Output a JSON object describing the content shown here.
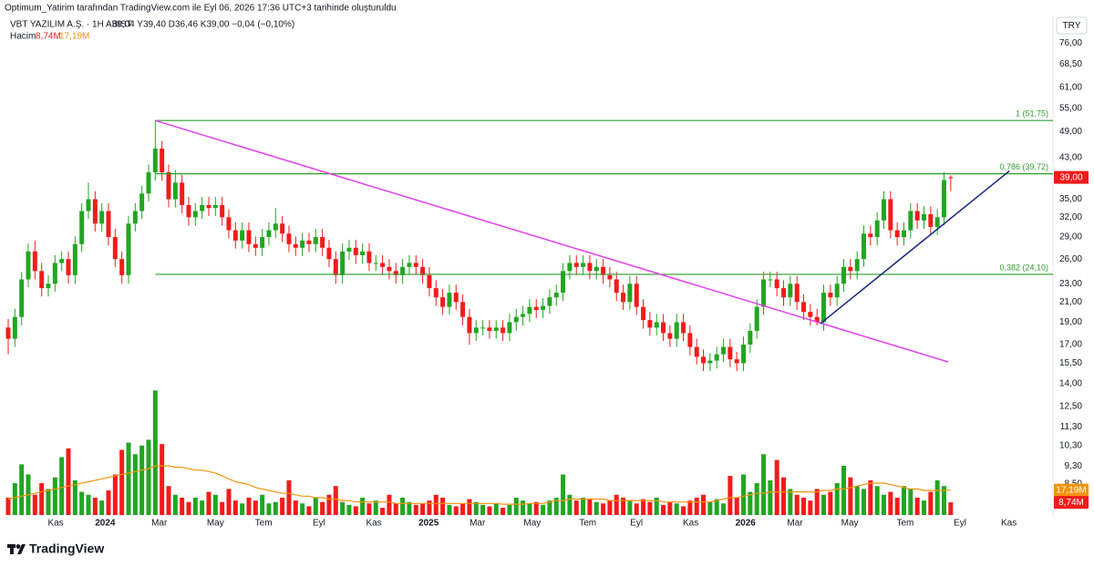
{
  "header": {
    "attribution": "Optimum_Yatirim tarafından TradingView.com ile Eyl 06, 2026 17:36 UTC+3 tarihinde oluşturuldu",
    "symbol": "VBT YAZILIM A.Ş. · 1H · BIST",
    "ohlc": "A39,04 Y39,40 D36,46 K39,00 −0,04 (−0,10%)",
    "volume_title": "Hacim",
    "volume_value": "8,74M",
    "volume_ma_value": "17,19M"
  },
  "currency": "TRY",
  "logo": "TradingView",
  "chart_data": {
    "type": "candlestick",
    "log_scale": true,
    "grid": false,
    "up_color": "#22a522",
    "down_color": "#f21b1b",
    "ma_color": "#f5930b",
    "level_color": "#2e9e2e",
    "xlim": [
      -1.23,
      156.3
    ],
    "ylim": [
      7.29,
      86
    ],
    "volume_ylim": [
      0,
      90
    ],
    "xticks": [
      {
        "value": 7.1,
        "label": "Kas"
      },
      {
        "value": 14.5,
        "label": "2024"
      },
      {
        "value": 22.6,
        "label": "Mar"
      },
      {
        "value": 31,
        "label": "May"
      },
      {
        "value": 38.2,
        "label": "Tem"
      },
      {
        "value": 46.5,
        "label": "Eyl"
      },
      {
        "value": 54.7,
        "label": "Kas"
      },
      {
        "value": 62.9,
        "label": "2025"
      },
      {
        "value": 70.2,
        "label": "Mar"
      },
      {
        "value": 78.4,
        "label": "May"
      },
      {
        "value": 86.7,
        "label": "Tem"
      },
      {
        "value": 94,
        "label": "Eyl"
      },
      {
        "value": 102.1,
        "label": "Kas"
      },
      {
        "value": 110.3,
        "label": "2026"
      },
      {
        "value": 117.7,
        "label": "Mar"
      },
      {
        "value": 125.9,
        "label": "May"
      },
      {
        "value": 134.2,
        "label": "Tem"
      },
      {
        "value": 142.4,
        "label": "Eyl"
      },
      {
        "value": 149.7,
        "label": "Kas"
      }
    ],
    "yticks": [
      {
        "value": 76,
        "label": "76,00"
      },
      {
        "value": 68.5,
        "label": "68,50"
      },
      {
        "value": 61,
        "label": "61,00"
      },
      {
        "value": 55,
        "label": "55,00"
      },
      {
        "value": 49,
        "label": "49,00"
      },
      {
        "value": 43,
        "label": "43,00"
      },
      {
        "value": 35,
        "label": "35,00"
      },
      {
        "value": 32,
        "label": "32,00"
      },
      {
        "value": 29,
        "label": "29,00"
      },
      {
        "value": 26,
        "label": "26,00"
      },
      {
        "value": 23,
        "label": "23,00"
      },
      {
        "value": 21,
        "label": "21,00"
      },
      {
        "value": 19,
        "label": "19,00"
      },
      {
        "value": 17,
        "label": "17,00"
      },
      {
        "value": 15.5,
        "label": "15,50"
      },
      {
        "value": 14,
        "label": "14,00"
      },
      {
        "value": 12.5,
        "label": "12,50"
      },
      {
        "value": 11.3,
        "label": "11,30"
      },
      {
        "value": 10.3,
        "label": "10,30"
      },
      {
        "value": 9.3,
        "label": "9,30"
      },
      {
        "value": 8.5,
        "label": "8,50"
      }
    ],
    "open": [
      18.5,
      17.5,
      19.5,
      23.5,
      27,
      24.5,
      22.5,
      23,
      25.5,
      26,
      24,
      28,
      33,
      35,
      31,
      33,
      29,
      26,
      24,
      31,
      33,
      36,
      40,
      45,
      40,
      35,
      38,
      34,
      32,
      33,
      34,
      33.5,
      34,
      32,
      30,
      28.5,
      30,
      28,
      27.5,
      29,
      30,
      31,
      29.5,
      28,
      27.5,
      28.5,
      28,
      29,
      27.5,
      26,
      24,
      27,
      27.5,
      26.5,
      27,
      25.5,
      25.5,
      25,
      24.5,
      24,
      25,
      25.5,
      25,
      24,
      22.5,
      21.5,
      20.5,
      22,
      21,
      19.5,
      18,
      18.5,
      18.5,
      18.2,
      18.5,
      18,
      19,
      19.5,
      19.8,
      20.5,
      20.2,
      20.6,
      21.5,
      22,
      24.5,
      25.5,
      25,
      25.5,
      24.5,
      25,
      24,
      23.5,
      22,
      21,
      23,
      20.5,
      19.2,
      18.5,
      19,
      18,
      17.5,
      19,
      18,
      16.8,
      16,
      15.5,
      15.7,
      16.2,
      16.8,
      15.8,
      15.5,
      17,
      18.2,
      20.5,
      23.5,
      23.5,
      22.5,
      21.5,
      23,
      21,
      20,
      19.5,
      19,
      22,
      21.5,
      23,
      25,
      24.5,
      26,
      29.5,
      29,
      31.5,
      35,
      30,
      29,
      30,
      33,
      31.5,
      32.5,
      30.5,
      32,
      39.04
    ],
    "high": [
      19.3,
      20.3,
      24.4,
      28.1,
      28.5,
      25.5,
      24,
      26.5,
      27,
      27,
      29.1,
      34.3,
      38,
      36.4,
      34.3,
      34.3,
      30.2,
      27,
      32.2,
      34.3,
      37.4,
      41.6,
      51.75,
      46.8,
      41.6,
      40.5,
      39.5,
      35.4,
      34.3,
      35.4,
      35.4,
      35.4,
      35.4,
      33.3,
      31.2,
      31.2,
      31.2,
      29.1,
      30.2,
      31.2,
      33.5,
      32.2,
      30.7,
      29.1,
      29.6,
      29.6,
      30.2,
      30.2,
      28.6,
      27,
      28.1,
      28.6,
      28.6,
      28.1,
      28.1,
      26.5,
      26.5,
      26,
      25.5,
      26,
      26.5,
      26.5,
      26,
      25,
      23.4,
      22.4,
      22.9,
      22.9,
      21.8,
      20.3,
      19.2,
      19.2,
      19.2,
      19.2,
      19.2,
      19.8,
      20.3,
      20.6,
      21.3,
      21.3,
      21.4,
      22.4,
      22.9,
      25.5,
      26.5,
      26.5,
      26.5,
      26.5,
      26,
      26,
      25,
      24.4,
      22.9,
      23.9,
      23.9,
      21.3,
      20,
      19.8,
      19.8,
      18.7,
      19.8,
      19.8,
      18.7,
      17.5,
      16.6,
      16.3,
      16.8,
      17.5,
      17.5,
      16.4,
      17.7,
      18.9,
      21.3,
      24.4,
      24.4,
      24.4,
      23.4,
      23.9,
      23.9,
      21.8,
      20.8,
      20.3,
      22.9,
      22.9,
      23.9,
      26,
      26,
      27,
      30.7,
      30.7,
      32.8,
      36.4,
      36.4,
      31.2,
      31.2,
      34.3,
      34.3,
      33.8,
      33.8,
      33.3,
      40,
      39.4
    ],
    "low": [
      16.2,
      16.8,
      18.7,
      22.6,
      23.5,
      21.6,
      21.6,
      22.1,
      24.5,
      23,
      23,
      26.9,
      31.7,
      29.8,
      29.8,
      27.8,
      25,
      23,
      23,
      29.8,
      31.7,
      34.6,
      38.4,
      38.4,
      33.6,
      33.6,
      32.6,
      30.7,
      30.7,
      31.7,
      32.2,
      32.2,
      30.7,
      28.8,
      27.4,
      27.4,
      26.9,
      26.4,
      26.4,
      27.8,
      28.8,
      28.3,
      26.9,
      26.4,
      26.4,
      26.9,
      26.9,
      26.4,
      25,
      23,
      23,
      25.9,
      25.4,
      25.4,
      24.5,
      24.5,
      24,
      23.5,
      23,
      23,
      24,
      24,
      23,
      21.6,
      20.6,
      19.7,
      19.7,
      20.2,
      18.7,
      17,
      17.3,
      17.8,
      17.5,
      17.5,
      17.3,
      17.3,
      18.2,
      18.7,
      19,
      19.4,
      19.4,
      19.8,
      20.6,
      21.1,
      23.5,
      24,
      24,
      23.5,
      23.5,
      23,
      22.6,
      21.1,
      20.2,
      20.2,
      19.7,
      18.4,
      17.8,
      17.8,
      17.3,
      16.8,
      16.8,
      17.3,
      16.1,
      15.4,
      14.9,
      14.9,
      15.1,
      15.6,
      15.2,
      14.9,
      14.9,
      16.3,
      17.5,
      19.7,
      22.6,
      21.6,
      20.6,
      20.6,
      20.2,
      19.2,
      18.7,
      18.7,
      18.2,
      20.6,
      20.6,
      22.1,
      23.5,
      23.5,
      25,
      27.8,
      27.8,
      30.2,
      28.8,
      27.8,
      27.8,
      28.8,
      30.2,
      30.2,
      29.3,
      29.3,
      30.7,
      36.46
    ],
    "close": [
      17.5,
      19.5,
      23.5,
      27,
      24.5,
      22.5,
      23,
      25.5,
      26,
      24,
      28,
      33,
      35,
      31,
      33,
      29,
      26,
      24,
      31,
      33,
      36,
      40,
      45,
      40,
      35,
      38,
      34,
      32,
      33,
      34,
      33.5,
      34,
      32,
      30,
      28.5,
      30,
      28,
      27.5,
      29,
      30,
      31,
      29.5,
      28,
      27.5,
      28.5,
      28,
      29,
      27.5,
      26,
      24,
      27,
      27.5,
      26.5,
      27,
      25.5,
      25.5,
      25,
      24.5,
      24,
      25,
      25.5,
      25,
      24,
      22.5,
      21.5,
      20.5,
      22,
      21,
      19.5,
      18,
      18.5,
      18.5,
      18.2,
      18.5,
      18,
      19,
      19.5,
      19.8,
      20.5,
      20.2,
      20.6,
      21.5,
      22,
      24.5,
      25.5,
      25,
      25.5,
      24.5,
      25,
      24,
      23.5,
      22,
      21,
      23,
      20.5,
      19.2,
      18.5,
      19,
      18,
      17.5,
      19,
      18,
      16.8,
      16,
      15.5,
      15.7,
      16.2,
      16.8,
      15.8,
      15.5,
      17,
      18.2,
      20.5,
      23.5,
      23.5,
      22.5,
      21.5,
      23,
      21,
      20,
      19.5,
      19,
      22,
      21.5,
      23,
      25,
      24.5,
      26,
      29.5,
      29,
      31.5,
      35,
      30,
      29,
      30,
      33,
      31.5,
      32.5,
      30.5,
      32,
      38.5,
      39
    ],
    "volume": [
      12,
      22,
      35,
      28,
      14,
      22,
      18,
      26,
      40,
      46,
      24,
      16,
      14,
      12,
      10,
      17,
      28,
      45,
      50,
      42,
      48,
      52,
      86,
      49,
      20,
      14,
      12,
      9,
      12,
      10,
      16,
      14,
      9,
      18,
      10,
      8,
      12,
      10,
      14,
      8,
      9,
      12,
      24,
      10,
      8,
      6,
      12,
      9,
      14,
      20,
      9,
      7,
      6,
      12,
      8,
      10,
      5,
      14,
      8,
      12,
      9,
      7,
      8,
      10,
      14,
      12,
      7,
      6,
      8,
      11,
      9,
      7,
      6,
      8,
      5,
      7,
      12,
      10,
      8,
      9,
      7,
      10,
      12,
      28,
      14,
      10,
      12,
      11,
      9,
      8,
      10,
      14,
      12,
      10,
      8,
      11,
      9,
      12,
      7,
      9,
      8,
      6,
      10,
      12,
      14,
      9,
      11,
      8,
      27,
      12,
      28,
      16,
      22,
      42,
      24,
      38,
      26,
      18,
      14,
      12,
      10,
      18,
      14,
      16,
      22,
      34,
      26,
      20,
      18,
      24,
      20,
      14,
      16,
      12,
      20,
      18,
      12,
      10,
      16,
      24,
      20,
      8.74
    ],
    "volume_ma": [
      11,
      12,
      13,
      14,
      15,
      16,
      17,
      18,
      19,
      20,
      21,
      22,
      23,
      24,
      25,
      26,
      27,
      28,
      29,
      30,
      31,
      32,
      34,
      34,
      34,
      33,
      33,
      32,
      31,
      31,
      30,
      29,
      27,
      25,
      23,
      22,
      21,
      19,
      18,
      17,
      16,
      15,
      15,
      14,
      13,
      13,
      12,
      12,
      11,
      11,
      10,
      10,
      9,
      9,
      9,
      9,
      9,
      9,
      8,
      8,
      8,
      8,
      8,
      8,
      8,
      8,
      8,
      8,
      8,
      8,
      8,
      8,
      8,
      8,
      7.5,
      7.5,
      7.5,
      7.5,
      8,
      8,
      8,
      9,
      10,
      10,
      11,
      11,
      11,
      11,
      11,
      11,
      10,
      10,
      10,
      10,
      10,
      10,
      10,
      10,
      9,
      9,
      9,
      9,
      9,
      9,
      9,
      9,
      10,
      11,
      12,
      12,
      13,
      14,
      15,
      15,
      16,
      16,
      16,
      16,
      16,
      16,
      16,
      16,
      17,
      17,
      18,
      18,
      19,
      20,
      21,
      22,
      22,
      22,
      21,
      20,
      19,
      18,
      18,
      17,
      17,
      17,
      17,
      17.19
    ],
    "last_labels": {
      "close": "39,00",
      "volume": "8,74M",
      "volume_ma": "17,19M"
    },
    "levels": [
      {
        "value": 51.75,
        "label": "1 (51,75)",
        "from": 22
      },
      {
        "value": 39.72,
        "label": "0,786 (39,72)",
        "from": 22
      },
      {
        "value": 24.1,
        "label": "0,382 (24,10)",
        "from": 22
      }
    ],
    "trendlines": [
      {
        "color": "#e040e8",
        "x": [
          22,
          140.6
        ],
        "y": [
          51.75,
          15.6
        ]
      },
      {
        "color": "#1a237e",
        "x": [
          121.5,
          149.8
        ],
        "y": [
          18.86,
          40.3
        ]
      }
    ]
  }
}
